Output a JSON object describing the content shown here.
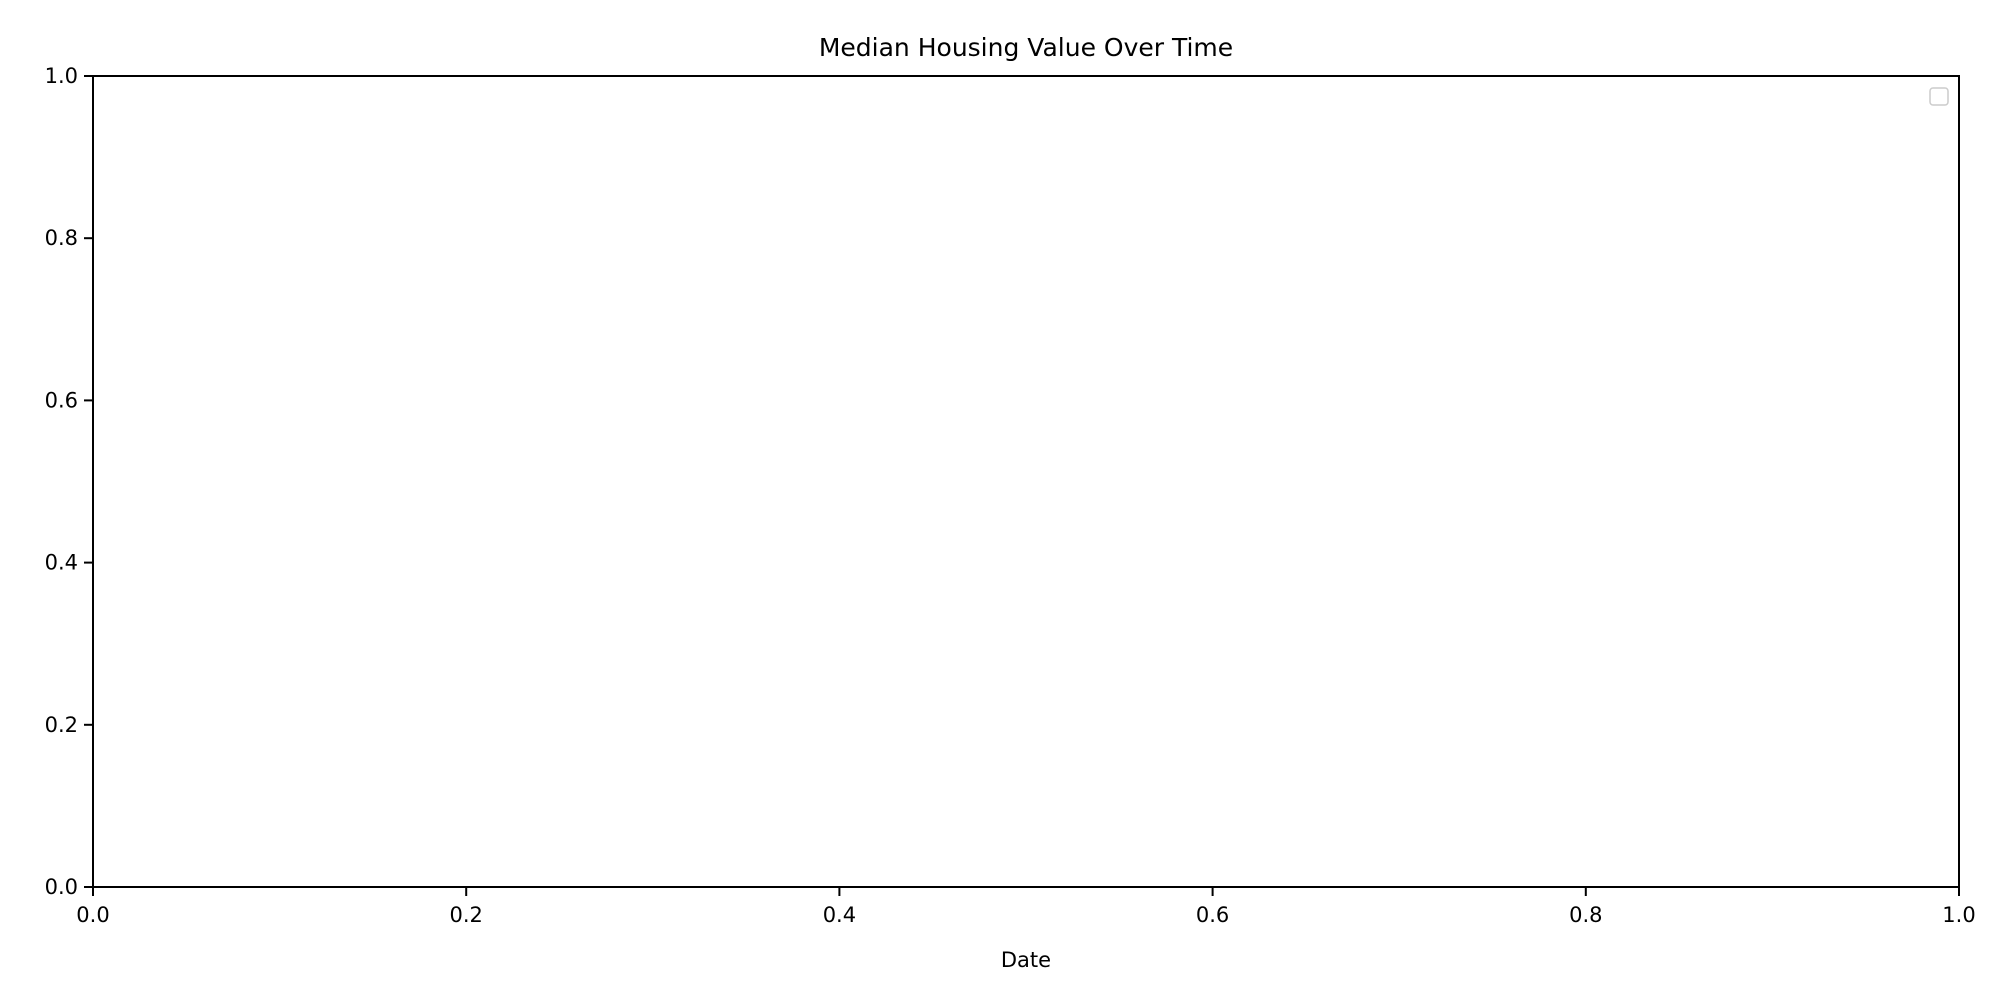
{
  "chart_data": {
    "type": "line",
    "title": "Median Housing Value Over Time",
    "xlabel": "Date",
    "ylabel": "",
    "xlim": [
      0.0,
      1.0
    ],
    "ylim": [
      0.0,
      1.0
    ],
    "x_ticks": [
      "0.0",
      "0.2",
      "0.4",
      "0.6",
      "0.8",
      "1.0"
    ],
    "y_ticks": [
      "0.0",
      "0.2",
      "0.4",
      "0.6",
      "0.8",
      "1.0"
    ],
    "series": [],
    "grid": false,
    "legend": {
      "placement": "top-right",
      "entries": []
    }
  },
  "colors": {
    "axis": "#000000",
    "legend_border": "#cccccc",
    "background": "#ffffff"
  }
}
